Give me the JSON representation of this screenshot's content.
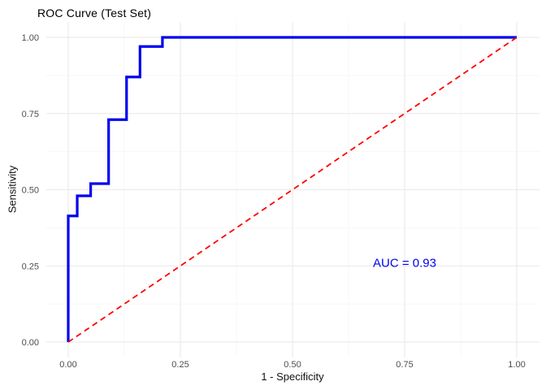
{
  "chart_data": {
    "type": "line",
    "title": "ROC Curve (Test Set)",
    "xlabel": "1 - Specificity",
    "ylabel": "Sensitivity",
    "xlim": [
      0,
      1
    ],
    "ylim": [
      0,
      1
    ],
    "grid": true,
    "legend": "none",
    "x_ticks": [
      0,
      0.25,
      0.5,
      0.75,
      1
    ],
    "x_tick_labels": [
      "0.00",
      "0.25",
      "0.50",
      "0.75",
      "1.00"
    ],
    "y_ticks": [
      0,
      0.25,
      0.5,
      0.75,
      1
    ],
    "y_tick_labels": [
      "0.00",
      "0.25",
      "0.50",
      "0.75",
      "1.00"
    ],
    "colors": {
      "roc_curve": "#0000EE",
      "diagonal": "#FF0000",
      "grid_major": "#EBEBEB",
      "grid_minor": "#F5F5F5",
      "tick_text": "#4d4d4d"
    },
    "series": [
      {
        "name": "roc-curve",
        "style": "solid-step",
        "color": "#0000EE",
        "points": [
          [
            0.0,
            0.0
          ],
          [
            0.0,
            0.414
          ],
          [
            0.02,
            0.414
          ],
          [
            0.02,
            0.48
          ],
          [
            0.05,
            0.48
          ],
          [
            0.05,
            0.52
          ],
          [
            0.09,
            0.52
          ],
          [
            0.09,
            0.73
          ],
          [
            0.13,
            0.73
          ],
          [
            0.13,
            0.87
          ],
          [
            0.16,
            0.87
          ],
          [
            0.16,
            0.97
          ],
          [
            0.21,
            0.97
          ],
          [
            0.21,
            1.0
          ],
          [
            1.0,
            1.0
          ]
        ]
      },
      {
        "name": "chance-diagonal",
        "style": "dashed",
        "color": "#FF0000",
        "points": [
          [
            0.0,
            0.0
          ],
          [
            1.0,
            1.0
          ]
        ]
      }
    ],
    "annotation": {
      "text": "AUC = 0.93",
      "x": 0.75,
      "y": 0.26,
      "color": "#0000EE"
    }
  }
}
